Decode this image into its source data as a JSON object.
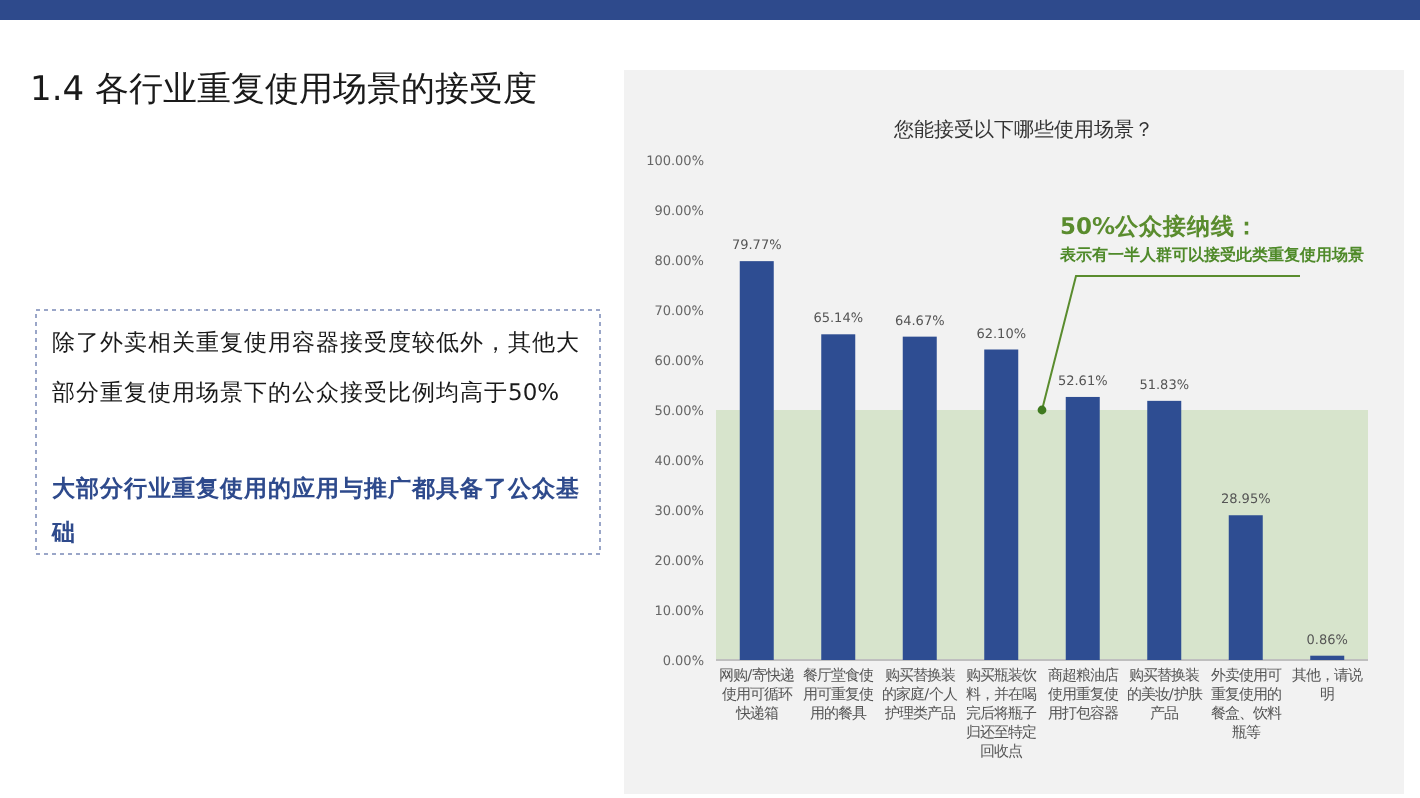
{
  "chart_data": {
    "type": "bar",
    "title": "1.4 各行业重复使用场景的接受度",
    "subtitle": "您能接受以下哪些使用场景？",
    "categories": [
      "网购/寄快递使用可循环快递箱",
      "餐厅堂食使用可重复使用的餐具",
      "购买替换装的家庭/个人护理类产品",
      "购买瓶装饮料，并在喝完后将瓶子归还至特定回收点",
      "商超粮油店使用重复使用打包容器",
      "购买替换装的美妆/护肤产品",
      "外卖使用可重复使用的餐盒、饮料瓶等",
      "其他，请说明"
    ],
    "values": [
      79.77,
      65.14,
      64.67,
      62.1,
      52.61,
      51.83,
      28.95,
      0.86
    ],
    "value_labels": [
      "79.77%",
      "65.14%",
      "64.67%",
      "62.10%",
      "52.61%",
      "51.83%",
      "28.95%",
      "0.86%"
    ],
    "color": "#2e4d92",
    "ylim": [
      0,
      100
    ],
    "yticks": [
      {
        "value": 0,
        "label": "0.00%"
      },
      {
        "value": 10,
        "label": "10.00%"
      },
      {
        "value": 20,
        "label": "20.00%"
      },
      {
        "value": 30,
        "label": "30.00%"
      },
      {
        "value": 40,
        "label": "40.00%"
      },
      {
        "value": 50,
        "label": "50.00%"
      },
      {
        "value": 60,
        "label": "60.00%"
      },
      {
        "value": 70,
        "label": "70.00%"
      },
      {
        "value": 80,
        "label": "80.00%"
      },
      {
        "value": 90,
        "label": "90.00%"
      },
      {
        "value": 100,
        "label": "100.00%"
      }
    ],
    "bands": [
      {
        "axis": "y",
        "from": 0,
        "to": 50,
        "color": "#d7e4cc"
      }
    ],
    "annotations": [
      "50%公众接纳线：",
      "表示有一半人群可以接受此类重复使用场景",
      "除了外卖相关重复使用容器接受度较低外，其他大部分重复使用场景下的公众接受比例均高于50%",
      "大部分行业重复使用的应用与推广都具备了公众基础"
    ]
  }
}
